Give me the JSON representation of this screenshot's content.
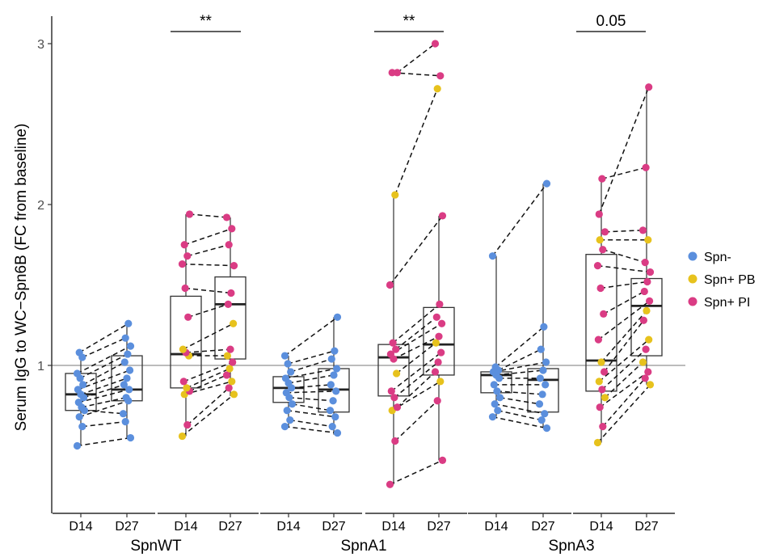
{
  "chart_data": {
    "type": "box",
    "ylabel": "Serum IgG to WC−Spn6B (FC from baseline)",
    "ylim": [
      0.1,
      3.1
    ],
    "y_ticks": [
      1,
      2,
      3
    ],
    "reference_line": 1,
    "categories": [
      "D14",
      "D27"
    ],
    "legend": {
      "placement": "right",
      "entries": [
        {
          "name": "Spn-",
          "color": "#5b8fdd"
        },
        {
          "name": "Spn+ PB",
          "color": "#e7c21d"
        },
        {
          "name": "Spn+ PI",
          "color": "#da3c84"
        }
      ]
    },
    "annotations": [
      {
        "group": "SpnWT",
        "text": "**"
      },
      {
        "group": "SpnA1",
        "text": "**"
      },
      {
        "group": "SpnA3",
        "text": "0.05"
      }
    ],
    "facets": [
      {
        "name": "Spn-",
        "group_label": "SpnWT",
        "boxes": [
          {
            "x": "D14",
            "min": 0.5,
            "q1": 0.72,
            "median": 0.82,
            "q3": 0.95,
            "max": 1.08
          },
          {
            "x": "D27",
            "min": 0.55,
            "q1": 0.78,
            "median": 0.85,
            "q3": 1.06,
            "max": 1.26
          }
        ],
        "pairs": [
          {
            "d14": 0.5,
            "d27": 0.55,
            "g": 0
          },
          {
            "d14": 0.62,
            "d27": 0.65,
            "g": 0
          },
          {
            "d14": 0.68,
            "d27": 0.78,
            "g": 0
          },
          {
            "d14": 0.72,
            "d27": 0.7,
            "g": 0
          },
          {
            "d14": 0.74,
            "d27": 0.8,
            "g": 0
          },
          {
            "d14": 0.77,
            "d27": 0.85,
            "g": 0
          },
          {
            "d14": 0.8,
            "d27": 0.88,
            "g": 0
          },
          {
            "d14": 0.82,
            "d27": 0.92,
            "g": 0
          },
          {
            "d14": 0.85,
            "d27": 0.97,
            "g": 0
          },
          {
            "d14": 0.88,
            "d27": 1.02,
            "g": 0
          },
          {
            "d14": 0.92,
            "d27": 1.07,
            "g": 0
          },
          {
            "d14": 0.95,
            "d27": 1.12,
            "g": 0
          },
          {
            "d14": 1.05,
            "d27": 1.17,
            "g": 0
          },
          {
            "d14": 1.08,
            "d27": 1.26,
            "g": 0
          }
        ]
      },
      {
        "name": "Spn+",
        "group_label": "SpnWT",
        "boxes": [
          {
            "x": "D14",
            "min": 0.56,
            "q1": 0.86,
            "median": 1.07,
            "q3": 1.43,
            "max": 1.94
          },
          {
            "x": "D27",
            "min": 0.81,
            "q1": 1.04,
            "median": 1.38,
            "q3": 1.55,
            "max": 1.92
          }
        ],
        "pairs": [
          {
            "d14": 0.56,
            "d27": 0.82,
            "g": 1
          },
          {
            "d14": 0.63,
            "d27": 0.86,
            "g": 2
          },
          {
            "d14": 0.82,
            "d27": 0.9,
            "g": 1
          },
          {
            "d14": 0.84,
            "d27": 0.94,
            "g": 2
          },
          {
            "d14": 0.86,
            "d27": 0.98,
            "g": 1
          },
          {
            "d14": 0.9,
            "d27": 1.02,
            "g": 2
          },
          {
            "d14": 1.06,
            "d27": 1.06,
            "g": 1
          },
          {
            "d14": 1.08,
            "d27": 1.1,
            "g": 2
          },
          {
            "d14": 1.1,
            "d27": 1.26,
            "g": 1
          },
          {
            "d14": 1.3,
            "d27": 1.38,
            "g": 2
          },
          {
            "d14": 1.48,
            "d27": 1.45,
            "g": 2
          },
          {
            "d14": 1.63,
            "d27": 1.62,
            "g": 2
          },
          {
            "d14": 1.68,
            "d27": 1.75,
            "g": 2
          },
          {
            "d14": 1.75,
            "d27": 1.85,
            "g": 2
          },
          {
            "d14": 1.94,
            "d27": 1.92,
            "g": 2
          }
        ]
      },
      {
        "name": "Spn-",
        "group_label": "SpnA1",
        "boxes": [
          {
            "x": "D14",
            "min": 0.62,
            "q1": 0.77,
            "median": 0.86,
            "q3": 0.93,
            "max": 1.06
          },
          {
            "x": "D27",
            "min": 0.57,
            "q1": 0.71,
            "median": 0.85,
            "q3": 0.98,
            "max": 1.3
          }
        ],
        "pairs": [
          {
            "d14": 0.62,
            "d27": 0.58,
            "g": 0
          },
          {
            "d14": 0.66,
            "d27": 0.62,
            "g": 0
          },
          {
            "d14": 0.72,
            "d27": 0.68,
            "g": 0
          },
          {
            "d14": 0.76,
            "d27": 0.72,
            "g": 0
          },
          {
            "d14": 0.8,
            "d27": 0.78,
            "g": 0
          },
          {
            "d14": 0.83,
            "d27": 0.84,
            "g": 0
          },
          {
            "d14": 0.86,
            "d27": 0.88,
            "g": 0
          },
          {
            "d14": 0.89,
            "d27": 0.94,
            "g": 0
          },
          {
            "d14": 0.92,
            "d27": 0.98,
            "g": 0
          },
          {
            "d14": 0.96,
            "d27": 1.04,
            "g": 0
          },
          {
            "d14": 1.01,
            "d27": 1.09,
            "g": 0
          },
          {
            "d14": 1.06,
            "d27": 1.3,
            "g": 0
          }
        ]
      },
      {
        "name": "Spn+",
        "group_label": "SpnA1",
        "boxes": [
          {
            "x": "D14",
            "min": 0.26,
            "q1": 0.81,
            "median": 1.05,
            "q3": 1.13,
            "max": 2.06
          },
          {
            "x": "D27",
            "min": 0.41,
            "q1": 0.94,
            "median": 1.13,
            "q3": 1.36,
            "max": 1.93
          }
        ],
        "pairs": [
          {
            "d14": 0.26,
            "d27": 0.41,
            "g": 2
          },
          {
            "d14": 0.53,
            "d27": 0.78,
            "g": 2
          },
          {
            "d14": 0.72,
            "d27": 0.9,
            "g": 1
          },
          {
            "d14": 0.74,
            "d27": 0.96,
            "g": 2
          },
          {
            "d14": 0.8,
            "d27": 1.02,
            "g": 2
          },
          {
            "d14": 0.84,
            "d27": 1.08,
            "g": 2
          },
          {
            "d14": 0.95,
            "d27": 1.14,
            "g": 1
          },
          {
            "d14": 1.04,
            "d27": 1.18,
            "g": 2
          },
          {
            "d14": 1.07,
            "d27": 1.26,
            "g": 2
          },
          {
            "d14": 1.1,
            "d27": 1.3,
            "g": 2
          },
          {
            "d14": 1.14,
            "d27": 1.38,
            "g": 2
          },
          {
            "d14": 1.5,
            "d27": 1.93,
            "g": 2
          },
          {
            "d14": 2.06,
            "d27": 2.72,
            "g": 1
          },
          {
            "d14": 2.82,
            "d27": 2.8,
            "g": 2
          },
          {
            "d14": 2.82,
            "d27": 3.0,
            "g": 2
          }
        ]
      },
      {
        "name": "Spn-",
        "group_label": "SpnA3",
        "boxes": [
          {
            "x": "D14",
            "min": 0.68,
            "q1": 0.83,
            "median": 0.94,
            "q3": 0.96,
            "max": 1.68
          },
          {
            "x": "D27",
            "min": 0.61,
            "q1": 0.71,
            "median": 0.91,
            "q3": 0.98,
            "max": 2.13
          }
        ],
        "pairs": [
          {
            "d14": 0.68,
            "d27": 0.61,
            "g": 0
          },
          {
            "d14": 0.72,
            "d27": 0.66,
            "g": 0
          },
          {
            "d14": 0.76,
            "d27": 0.7,
            "g": 0
          },
          {
            "d14": 0.8,
            "d27": 0.76,
            "g": 0
          },
          {
            "d14": 0.84,
            "d27": 0.82,
            "g": 0
          },
          {
            "d14": 0.88,
            "d27": 0.88,
            "g": 0
          },
          {
            "d14": 0.92,
            "d27": 0.92,
            "g": 0
          },
          {
            "d14": 0.94,
            "d27": 0.97,
            "g": 0
          },
          {
            "d14": 0.96,
            "d27": 1.02,
            "g": 0
          },
          {
            "d14": 0.97,
            "d27": 1.1,
            "g": 0
          },
          {
            "d14": 0.99,
            "d27": 1.24,
            "g": 0
          },
          {
            "d14": 1.68,
            "d27": 2.13,
            "g": 0
          }
        ]
      },
      {
        "name": "Spn+",
        "group_label": "SpnA3",
        "boxes": [
          {
            "x": "D14",
            "min": 0.52,
            "q1": 0.84,
            "median": 1.03,
            "q3": 1.69,
            "max": 2.16
          },
          {
            "x": "D27",
            "min": 0.88,
            "q1": 1.06,
            "median": 1.37,
            "q3": 1.54,
            "max": 2.73
          }
        ],
        "pairs": [
          {
            "d14": 0.52,
            "d27": 0.88,
            "g": 1
          },
          {
            "d14": 0.62,
            "d27": 0.92,
            "g": 2
          },
          {
            "d14": 0.74,
            "d27": 0.96,
            "g": 2
          },
          {
            "d14": 0.8,
            "d27": 1.02,
            "g": 1
          },
          {
            "d14": 0.85,
            "d27": 1.1,
            "g": 2
          },
          {
            "d14": 0.9,
            "d27": 1.16,
            "g": 1
          },
          {
            "d14": 0.96,
            "d27": 1.28,
            "g": 2
          },
          {
            "d14": 1.02,
            "d27": 1.34,
            "g": 1
          },
          {
            "d14": 1.16,
            "d27": 1.4,
            "g": 2
          },
          {
            "d14": 1.32,
            "d27": 1.46,
            "g": 2
          },
          {
            "d14": 1.48,
            "d27": 1.52,
            "g": 2
          },
          {
            "d14": 1.62,
            "d27": 1.58,
            "g": 2
          },
          {
            "d14": 1.72,
            "d27": 1.64,
            "g": 2
          },
          {
            "d14": 1.78,
            "d27": 1.78,
            "g": 1
          },
          {
            "d14": 1.83,
            "d27": 1.84,
            "g": 2
          },
          {
            "d14": 2.16,
            "d27": 2.23,
            "g": 2
          },
          {
            "d14": 1.94,
            "d27": 2.73,
            "g": 2
          }
        ]
      }
    ]
  }
}
